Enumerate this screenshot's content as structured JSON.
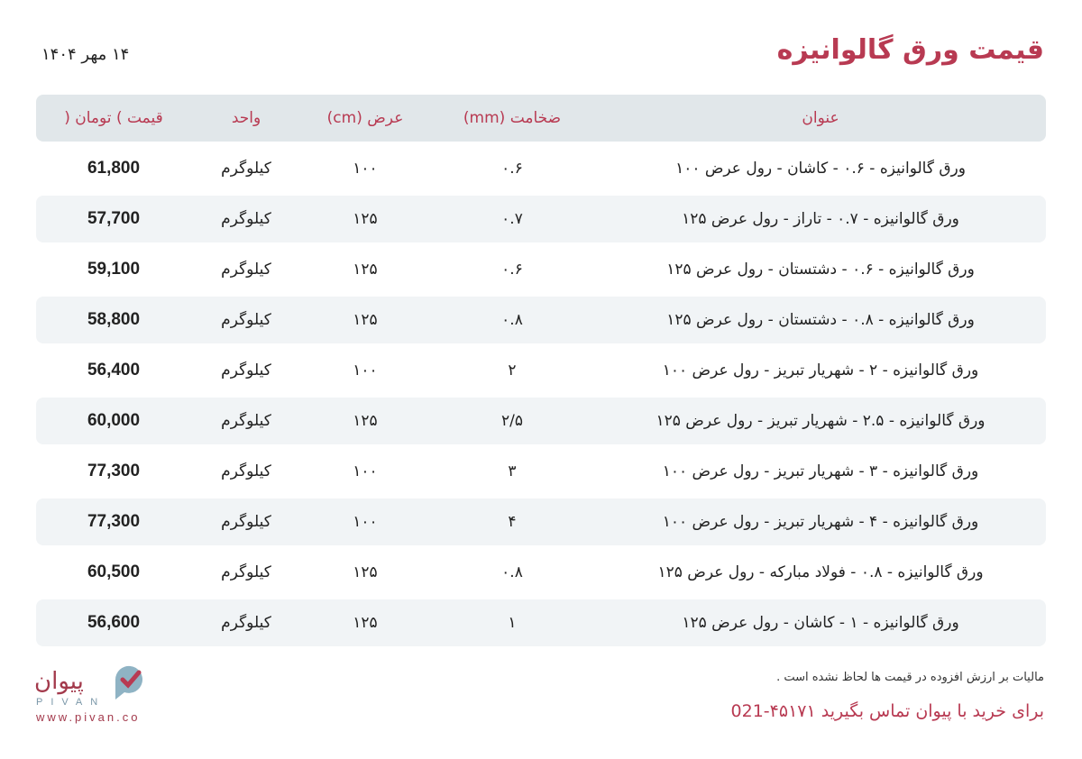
{
  "header": {
    "title": "قیمت ورق گالوانیزه",
    "date": "۱۴ مهر ۱۴۰۴"
  },
  "table": {
    "columns": [
      "عنوان",
      "ضخامت (mm)",
      "عرض (cm)",
      "واحد",
      "قیمت ) تومان ("
    ],
    "rows": [
      {
        "title": "ورق گالوانیزه - ۰.۶ - کاشان - رول عرض ۱۰۰",
        "thickness": "۰.۶",
        "width": "۱۰۰",
        "unit": "کیلوگرم",
        "price": "61,800"
      },
      {
        "title": "ورق گالوانیزه - ۰.۷ - تاراز - رول عرض ۱۲۵",
        "thickness": "۰.۷",
        "width": "۱۲۵",
        "unit": "کیلوگرم",
        "price": "57,700"
      },
      {
        "title": "ورق گالوانیزه - ۰.۶ - دشتستان - رول عرض ۱۲۵",
        "thickness": "۰.۶",
        "width": "۱۲۵",
        "unit": "کیلوگرم",
        "price": "59,100"
      },
      {
        "title": "ورق گالوانیزه - ۰.۸ - دشتستان - رول عرض ۱۲۵",
        "thickness": "۰.۸",
        "width": "۱۲۵",
        "unit": "کیلوگرم",
        "price": "58,800"
      },
      {
        "title": "ورق گالوانیزه - ۲ - شهریار تبریز - رول عرض ۱۰۰",
        "thickness": "۲",
        "width": "۱۰۰",
        "unit": "کیلوگرم",
        "price": "56,400"
      },
      {
        "title": "ورق گالوانیزه - ۲.۵ - شهریار تبریز - رول عرض ۱۲۵",
        "thickness": "۲/۵",
        "width": "۱۲۵",
        "unit": "کیلوگرم",
        "price": "60,000"
      },
      {
        "title": "ورق گالوانیزه - ۳ - شهریار تبریز - رول عرض ۱۰۰",
        "thickness": "۳",
        "width": "۱۰۰",
        "unit": "کیلوگرم",
        "price": "77,300"
      },
      {
        "title": "ورق گالوانیزه - ۴ - شهریار تبریز - رول عرض ۱۰۰",
        "thickness": "۴",
        "width": "۱۰۰",
        "unit": "کیلوگرم",
        "price": "77,300"
      },
      {
        "title": "ورق گالوانیزه - ۰.۸ - فولاد مبارکه - رول عرض ۱۲۵",
        "thickness": "۰.۸",
        "width": "۱۲۵",
        "unit": "کیلوگرم",
        "price": "60,500"
      },
      {
        "title": "ورق گالوانیزه - ۱ - کاشان - رول عرض ۱۲۵",
        "thickness": "۱",
        "width": "۱۲۵",
        "unit": "کیلوگرم",
        "price": "56,600"
      }
    ]
  },
  "footer": {
    "logo_fa": "پیوان",
    "logo_en": "PIVAN",
    "url": "www.pivan.co",
    "note": "مالیات بر ارزش افزوده در قیمت ها لحاظ نشده است .",
    "contact": "برای خرید با پیوان تماس بگیرید ۴۵۱۷۱-021"
  },
  "colors": {
    "accent": "#b83a52",
    "header_bg": "#e1e7ea",
    "stripe_bg": "#f1f4f6"
  }
}
